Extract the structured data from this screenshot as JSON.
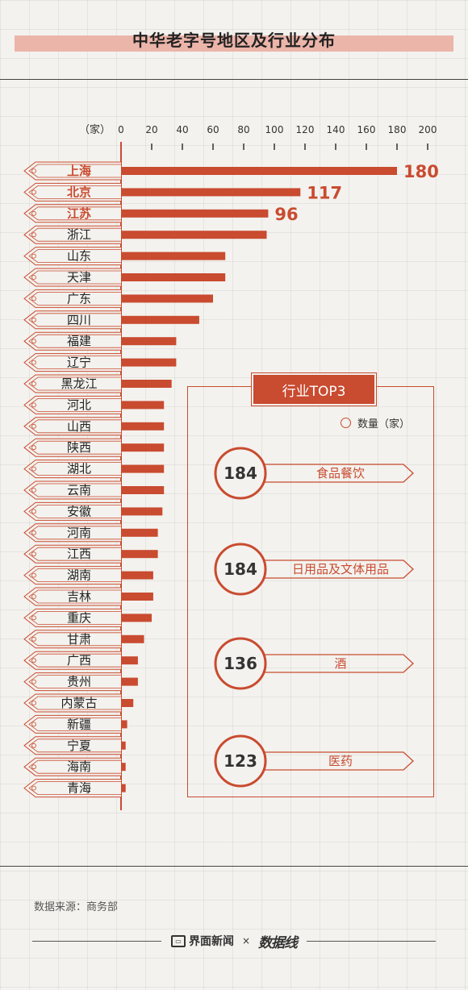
{
  "title": "中华老字号地区及行业分布",
  "unit_label": "（家）",
  "panel": {
    "title": "行业TOP3",
    "legend_label": "数量（家）",
    "industries": [
      {
        "value": "184",
        "name": "食品餐饮"
      },
      {
        "value": "184",
        "name": "日用品及文体用品"
      },
      {
        "value": "136",
        "name": "酒"
      },
      {
        "value": "123",
        "name": "医药"
      }
    ]
  },
  "source": "数据来源：商务部",
  "footer": {
    "brand1": "界面新闻",
    "times": "×",
    "brand2": "数据线"
  },
  "colors": {
    "accent": "#c94b30",
    "bar": "#c94b30",
    "highlight_text": "#c94b30"
  },
  "chart_data": {
    "type": "bar",
    "orientation": "horizontal",
    "xlim": [
      0,
      200
    ],
    "ticks": [
      0,
      20,
      40,
      60,
      80,
      100,
      120,
      140,
      160,
      180,
      200
    ],
    "categories": [
      "上海",
      "北京",
      "江苏",
      "浙江",
      "山东",
      "天津",
      "广东",
      "四川",
      "福建",
      "辽宁",
      "黑龙江",
      "河北",
      "山西",
      "陕西",
      "湖北",
      "云南",
      "安徽",
      "河南",
      "江西",
      "湖南",
      "吉林",
      "重庆",
      "甘肃",
      "广西",
      "贵州",
      "内蒙古",
      "新疆",
      "宁夏",
      "海南",
      "青海"
    ],
    "values": [
      180,
      117,
      96,
      95,
      68,
      68,
      60,
      51,
      36,
      36,
      33,
      28,
      28,
      28,
      28,
      28,
      27,
      24,
      24,
      21,
      21,
      20,
      15,
      11,
      11,
      8,
      4,
      3,
      3,
      3
    ],
    "data_labels": {
      "上海": "180",
      "北京": "117",
      "江苏": "96"
    },
    "highlighted": [
      "上海",
      "北京",
      "江苏"
    ]
  }
}
